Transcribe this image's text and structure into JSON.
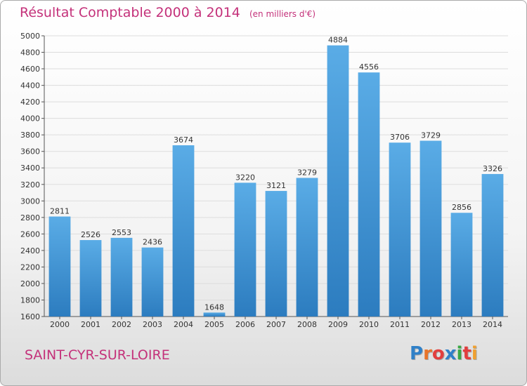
{
  "title": "Résultat Comptable 2000 à 2014",
  "unit": "(en milliers d'€)",
  "city": "SAINT-CYR-SUR-LOIRE",
  "brand": {
    "letters": [
      "P",
      "r",
      "o",
      "x",
      "i",
      "t",
      "i"
    ],
    "colors": [
      "#2f80c8",
      "#e8742a",
      "#e23e3e",
      "#2f80c8",
      "#3aa845",
      "#e23e3e",
      "#f0a030"
    ]
  },
  "colors": {
    "bar_light": "#5aace6",
    "bar_dark": "#2c7cbf",
    "accent": "#c4317a",
    "grid": "#dddddd"
  },
  "chart_data": {
    "type": "bar",
    "title": "Résultat Comptable 2000 à 2014",
    "ylabel": "en milliers d'€",
    "xlabel": "",
    "categories": [
      "2000",
      "2001",
      "2002",
      "2003",
      "2004",
      "2005",
      "2006",
      "2007",
      "2008",
      "2009",
      "2010",
      "2011",
      "2012",
      "2013",
      "2014"
    ],
    "values": [
      2811,
      2526,
      2553,
      2436,
      3674,
      1648,
      3220,
      3121,
      3279,
      4884,
      4556,
      3706,
      3729,
      2856,
      3326
    ],
    "ylim": [
      1600,
      5000
    ],
    "yticks": [
      1600,
      1800,
      2000,
      2200,
      2400,
      2600,
      2800,
      3000,
      3200,
      3400,
      3600,
      3800,
      4000,
      4200,
      4400,
      4600,
      4800,
      5000
    ],
    "grid": true
  }
}
